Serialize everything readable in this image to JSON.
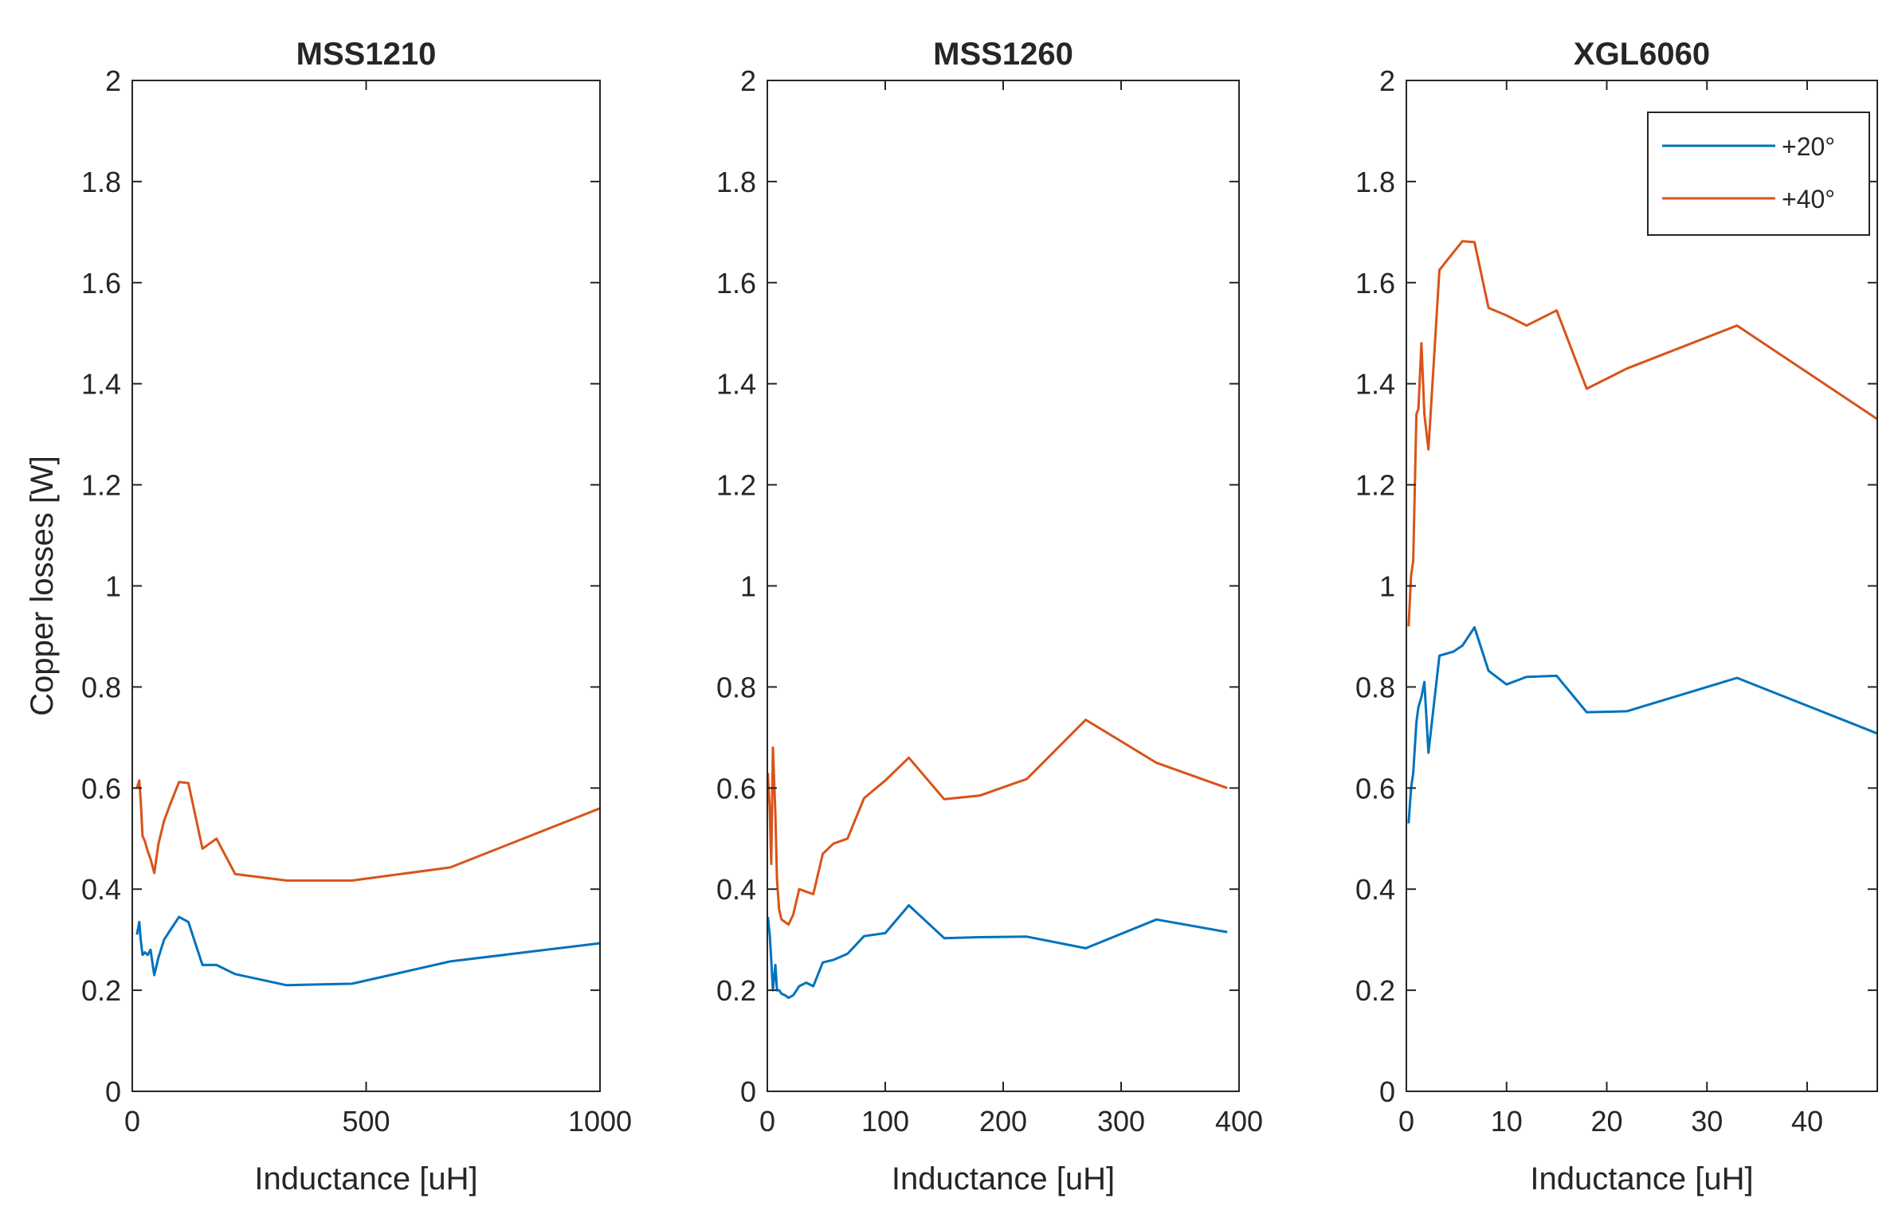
{
  "chart_data": [
    {
      "type": "line",
      "title": "MSS1210",
      "xlabel": "Inductance [uH]",
      "ylabel": "Copper losses [W]",
      "xlim": [
        0,
        1000
      ],
      "ylim": [
        0,
        2
      ],
      "xticks": [
        0,
        500,
        1000
      ],
      "xtick_labels": [
        "0",
        "500",
        "1000"
      ],
      "yticks": [
        0,
        0.2,
        0.4,
        0.6,
        0.8,
        1,
        1.2,
        1.4,
        1.6,
        1.8,
        2
      ],
      "ytick_labels": [
        "0",
        "0.2",
        "0.4",
        "0.6",
        "0.8",
        "1",
        "1.2",
        "1.4",
        "1.6",
        "1.8",
        "2"
      ],
      "grid": false,
      "series": [
        {
          "name": "+20°",
          "color": "#0072BD",
          "x": [
            10,
            15,
            18,
            22,
            27,
            33,
            39,
            47,
            56,
            68,
            82,
            100,
            120,
            150,
            180,
            220,
            330,
            470,
            680,
            1000
          ],
          "y": [
            0.31,
            0.335,
            0.3,
            0.27,
            0.275,
            0.27,
            0.28,
            0.23,
            0.265,
            0.3,
            0.32,
            0.345,
            0.335,
            0.25,
            0.25,
            0.232,
            0.21,
            0.213,
            0.257,
            0.293
          ]
        },
        {
          "name": "+40°",
          "color": "#D95319",
          "x": [
            10,
            15,
            18,
            22,
            27,
            33,
            39,
            47,
            56,
            68,
            82,
            100,
            120,
            150,
            180,
            220,
            330,
            470,
            680,
            1000
          ],
          "y": [
            0.6,
            0.615,
            0.575,
            0.505,
            0.495,
            0.475,
            0.46,
            0.432,
            0.49,
            0.535,
            0.57,
            0.612,
            0.61,
            0.48,
            0.5,
            0.43,
            0.417,
            0.417,
            0.443,
            0.56
          ]
        }
      ]
    },
    {
      "type": "line",
      "title": "MSS1260",
      "xlabel": "Inductance [uH]",
      "ylabel": "",
      "xlim": [
        0,
        400
      ],
      "ylim": [
        0,
        2
      ],
      "xticks": [
        0,
        100,
        200,
        300,
        400
      ],
      "xtick_labels": [
        "0",
        "100",
        "200",
        "300",
        "400"
      ],
      "yticks": [
        0,
        0.2,
        0.4,
        0.6,
        0.8,
        1,
        1.2,
        1.4,
        1.6,
        1.8,
        2
      ],
      "ytick_labels": [
        "0",
        "0.2",
        "0.4",
        "0.6",
        "0.8",
        "1",
        "1.2",
        "1.4",
        "1.6",
        "1.8",
        "2"
      ],
      "grid": false,
      "series": [
        {
          "name": "+20°",
          "color": "#0072BD",
          "x": [
            0.5,
            2,
            3.3,
            4.7,
            6.8,
            8.2,
            10,
            12,
            15,
            18,
            22,
            27,
            33,
            39,
            47,
            56,
            68,
            82,
            100,
            120,
            150,
            180,
            220,
            270,
            330,
            390
          ],
          "y": [
            0.345,
            0.31,
            0.26,
            0.2,
            0.25,
            0.2,
            0.2,
            0.193,
            0.19,
            0.185,
            0.19,
            0.208,
            0.215,
            0.208,
            0.255,
            0.26,
            0.272,
            0.307,
            0.313,
            0.368,
            0.303,
            0.305,
            0.306,
            0.283,
            0.34,
            0.315
          ]
        },
        {
          "name": "+40°",
          "color": "#D95319",
          "x": [
            0.5,
            2,
            3.3,
            4.7,
            6.8,
            8.2,
            10,
            12,
            15,
            18,
            22,
            27,
            33,
            39,
            47,
            56,
            68,
            82,
            100,
            120,
            150,
            180,
            220,
            270,
            330,
            390
          ],
          "y": [
            0.63,
            0.56,
            0.45,
            0.68,
            0.55,
            0.42,
            0.36,
            0.34,
            0.335,
            0.33,
            0.35,
            0.4,
            0.395,
            0.39,
            0.47,
            0.49,
            0.5,
            0.58,
            0.615,
            0.66,
            0.578,
            0.585,
            0.618,
            0.735,
            0.65,
            0.6
          ]
        }
      ]
    },
    {
      "type": "line",
      "title": "XGL6060",
      "xlabel": "Inductance [uH]",
      "ylabel": "",
      "xlim": [
        0,
        47
      ],
      "ylim": [
        0,
        2
      ],
      "xticks": [
        0,
        10,
        20,
        30,
        40
      ],
      "xtick_labels": [
        "0",
        "10",
        "20",
        "30",
        "40"
      ],
      "yticks": [
        0,
        0.2,
        0.4,
        0.6,
        0.8,
        1,
        1.2,
        1.4,
        1.6,
        1.8,
        2
      ],
      "ytick_labels": [
        "0",
        "0.2",
        "0.4",
        "0.6",
        "0.8",
        "1",
        "1.2",
        "1.4",
        "1.6",
        "1.8",
        "2"
      ],
      "grid": false,
      "legend": {
        "position": "top-right",
        "entries": [
          "+20°",
          "+40°"
        ]
      },
      "series": [
        {
          "name": "+20°",
          "color": "#0072BD",
          "x": [
            0.22,
            0.47,
            0.68,
            1,
            1.2,
            1.5,
            1.8,
            2.2,
            3.3,
            4.7,
            5.6,
            6.8,
            8.2,
            10,
            12,
            15,
            18,
            22,
            33,
            47
          ],
          "y": [
            0.53,
            0.6,
            0.63,
            0.73,
            0.76,
            0.78,
            0.81,
            0.67,
            0.862,
            0.87,
            0.882,
            0.918,
            0.832,
            0.805,
            0.82,
            0.822,
            0.75,
            0.752,
            0.818,
            0.708
          ]
        },
        {
          "name": "+40°",
          "color": "#D95319",
          "x": [
            0.22,
            0.47,
            0.68,
            1,
            1.2,
            1.5,
            1.8,
            2.2,
            3.3,
            4.7,
            5.6,
            6.8,
            8.2,
            10,
            12,
            15,
            18,
            22,
            33,
            47
          ],
          "y": [
            0.92,
            1.02,
            1.05,
            1.34,
            1.35,
            1.48,
            1.34,
            1.27,
            1.625,
            1.66,
            1.682,
            1.68,
            1.55,
            1.535,
            1.515,
            1.545,
            1.39,
            1.43,
            1.515,
            1.33
          ]
        }
      ]
    }
  ]
}
